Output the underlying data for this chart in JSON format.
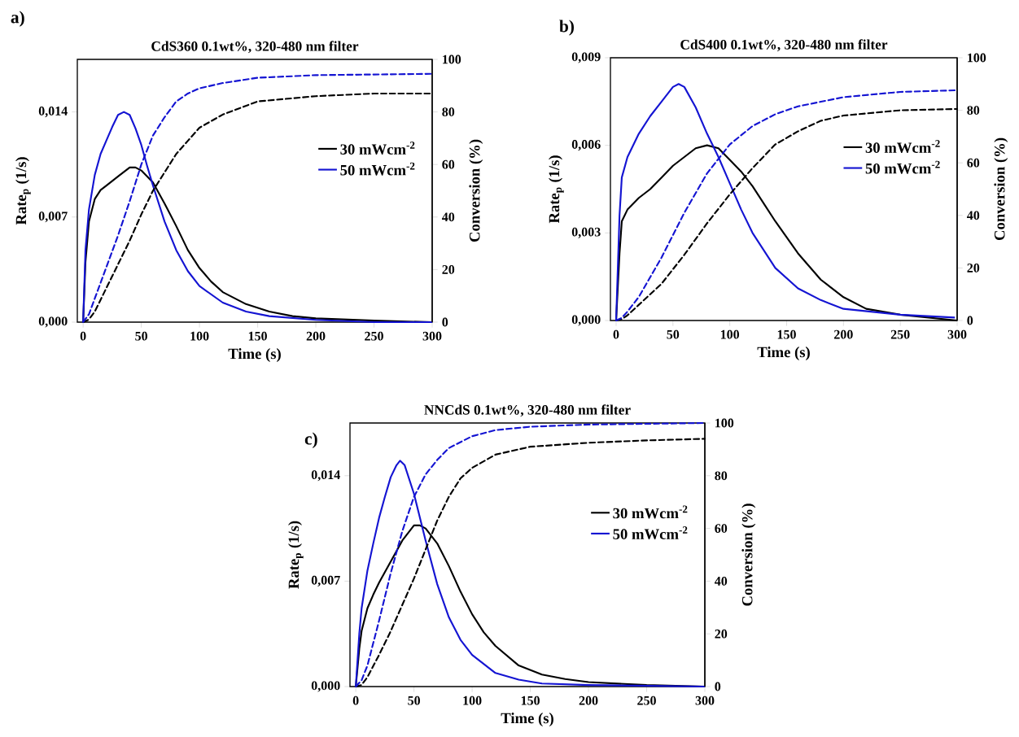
{
  "chart_data": [
    {
      "type": "line",
      "title": "CdS360 0.1wt%, 320-480 nm filter",
      "xlabel": "Time (s)",
      "ylabel": "Rate$_{p}$ (1/s)",
      "y2label": "Conversion (%)",
      "annotations": [
        "a)"
      ],
      "legend": "right",
      "xlim": [
        -5,
        300
      ],
      "xticks": [
        0,
        50,
        100,
        150,
        200,
        250,
        300
      ],
      "ylim": [
        0,
        0.0175
      ],
      "yticks": [
        {
          "value": 0,
          "label": "0,000"
        },
        {
          "value": 0.007,
          "label": "0,007"
        },
        {
          "value": 0.014,
          "label": "0,014"
        }
      ],
      "y2lim": [
        0,
        100
      ],
      "y2ticks": [
        0,
        20,
        40,
        60,
        80,
        100
      ],
      "series": [
        {
          "name": "30 mWcm$^{-2}$",
          "color": "#000000",
          "x": [
            0,
            2,
            5,
            10,
            15,
            20,
            30,
            40,
            45,
            50,
            60,
            70,
            80,
            90,
            100,
            110,
            120,
            140,
            160,
            180,
            200,
            250,
            300
          ],
          "values": [
            0,
            0.004,
            0.0067,
            0.0082,
            0.0088,
            0.0091,
            0.0097,
            0.0103,
            0.0103,
            0.0101,
            0.0093,
            0.0079,
            0.0064,
            0.0048,
            0.0036,
            0.0027,
            0.002,
            0.0012,
            0.0007,
            0.0004,
            0.00025,
            0.0001,
            0
          ]
        },
        {
          "name": "50 mWcm$^{-2}$",
          "color": "#1414d2",
          "x": [
            0,
            2,
            5,
            10,
            15,
            20,
            25,
            30,
            35,
            40,
            45,
            50,
            55,
            60,
            70,
            80,
            90,
            100,
            120,
            140,
            160,
            200,
            250,
            300
          ],
          "values": [
            0,
            0.0048,
            0.0075,
            0.0098,
            0.0112,
            0.0121,
            0.013,
            0.0138,
            0.014,
            0.0138,
            0.0129,
            0.0118,
            0.0104,
            0.0091,
            0.0067,
            0.0048,
            0.0034,
            0.0024,
            0.0013,
            0.0007,
            0.0004,
            0.00015,
            0,
            0
          ]
        },
        {
          "color": "#000000",
          "axis": "y2",
          "line_style": "dashed",
          "x": [
            0,
            5,
            10,
            20,
            30,
            40,
            50,
            60,
            70,
            80,
            90,
            100,
            120,
            150,
            200,
            250,
            300
          ],
          "values": [
            0,
            1,
            4,
            13,
            22,
            31,
            41,
            50,
            57,
            64,
            69,
            74,
            79,
            84,
            86,
            87,
            87
          ]
        },
        {
          "color": "#1414d2",
          "axis": "y2",
          "line_style": "dashed",
          "x": [
            0,
            5,
            10,
            20,
            30,
            40,
            50,
            60,
            70,
            80,
            90,
            100,
            120,
            150,
            200,
            300
          ],
          "values": [
            0,
            3,
            9,
            21,
            33,
            46,
            60,
            71,
            78,
            84,
            87,
            89,
            91,
            93,
            94,
            94.5
          ]
        }
      ]
    },
    {
      "type": "line",
      "title": "CdS400 0.1wt%, 320-480 nm filter",
      "xlabel": "Time (s)",
      "ylabel": "Rate$_{p}$ (1/s)",
      "y2label": "Conversion (%)",
      "annotations": [
        "b)"
      ],
      "legend": "right",
      "xlim": [
        -5,
        300
      ],
      "xticks": [
        0,
        50,
        100,
        150,
        200,
        250,
        300
      ],
      "ylim": [
        0,
        0.009
      ],
      "yticks": [
        {
          "value": 0,
          "label": "0,000"
        },
        {
          "value": 0.003,
          "label": "0,003"
        },
        {
          "value": 0.006,
          "label": "0,006"
        },
        {
          "value": 0.009,
          "label": "0,009"
        }
      ],
      "y2lim": [
        0,
        100
      ],
      "y2ticks": [
        0,
        20,
        40,
        60,
        80,
        100
      ],
      "series": [
        {
          "name": "30 mWcm$^{-2}$",
          "color": "#000000",
          "x": [
            0,
            3,
            5,
            10,
            15,
            20,
            30,
            40,
            50,
            60,
            70,
            80,
            90,
            100,
            110,
            120,
            140,
            160,
            180,
            200,
            220,
            250,
            300
          ],
          "values": [
            0,
            0.0023,
            0.0034,
            0.0038,
            0.004,
            0.0042,
            0.0045,
            0.0049,
            0.0053,
            0.0056,
            0.0059,
            0.006,
            0.0059,
            0.0055,
            0.0051,
            0.0046,
            0.0034,
            0.0023,
            0.0014,
            0.0008,
            0.0004,
            0.0002,
            0
          ]
        },
        {
          "name": "50 mWcm$^{-2}$",
          "color": "#1414d2",
          "x": [
            0,
            3,
            5,
            10,
            15,
            20,
            30,
            40,
            50,
            55,
            60,
            70,
            80,
            90,
            100,
            110,
            120,
            140,
            160,
            180,
            200,
            250,
            298
          ],
          "values": [
            0,
            0.0036,
            0.0049,
            0.0056,
            0.006,
            0.0064,
            0.007,
            0.0075,
            0.008,
            0.0081,
            0.008,
            0.0073,
            0.0064,
            0.0056,
            0.0047,
            0.0038,
            0.003,
            0.0018,
            0.0011,
            0.0007,
            0.0004,
            0.0002,
            0.0001
          ]
        },
        {
          "color": "#000000",
          "axis": "y2",
          "line_style": "dashed",
          "x": [
            0,
            5,
            10,
            20,
            40,
            60,
            80,
            100,
            120,
            140,
            160,
            180,
            200,
            250,
            300
          ],
          "values": [
            0,
            0.5,
            2,
            6,
            14,
            25,
            37,
            48,
            58,
            67,
            72,
            76,
            78,
            80,
            80.5
          ]
        },
        {
          "color": "#1414d2",
          "axis": "y2",
          "line_style": "dashed",
          "x": [
            0,
            5,
            10,
            20,
            40,
            60,
            80,
            100,
            120,
            140,
            160,
            200,
            250,
            298
          ],
          "values": [
            0,
            1,
            3.4,
            9,
            24,
            41,
            56,
            67,
            74,
            78.5,
            81.5,
            85,
            87,
            87.6
          ]
        }
      ]
    },
    {
      "type": "line",
      "title": "NNCdS 0.1wt%, 320-480 nm filter",
      "xlabel": "Time (s)",
      "ylabel": "Rate$_{p}$ (1/s)",
      "y2label": "Conversion (%)",
      "annotations": [
        "c)"
      ],
      "legend": "right",
      "xlim": [
        -5,
        300
      ],
      "xticks": [
        0,
        50,
        100,
        150,
        200,
        250,
        300
      ],
      "ylim": [
        0,
        0.0175
      ],
      "yticks": [
        {
          "value": 0,
          "label": "0,000"
        },
        {
          "value": 0.007,
          "label": "0,007"
        },
        {
          "value": 0.014,
          "label": "0,014"
        }
      ],
      "y2lim": [
        0,
        100
      ],
      "y2ticks": [
        0,
        20,
        40,
        60,
        80,
        100
      ],
      "series": [
        {
          "name": "30 mWcm$^{-2}$",
          "color": "#000000",
          "x": [
            0,
            3,
            5,
            10,
            15,
            20,
            30,
            40,
            50,
            55,
            60,
            70,
            80,
            90,
            100,
            110,
            120,
            140,
            160,
            180,
            200,
            250,
            300
          ],
          "values": [
            0,
            0.0025,
            0.0037,
            0.0052,
            0.0061,
            0.0069,
            0.0083,
            0.0097,
            0.0107,
            0.0107,
            0.0105,
            0.0095,
            0.008,
            0.0063,
            0.0048,
            0.0036,
            0.0027,
            0.0014,
            0.0008,
            0.0005,
            0.0003,
            0.0001,
            0
          ]
        },
        {
          "name": "50 mWcm$^{-2}$",
          "color": "#1414d2",
          "x": [
            0,
            3,
            5,
            10,
            15,
            20,
            25,
            30,
            35,
            38,
            42,
            50,
            60,
            70,
            80,
            90,
            100,
            120,
            140,
            160,
            200,
            300
          ],
          "values": [
            0,
            0.0035,
            0.0052,
            0.0077,
            0.0095,
            0.0112,
            0.0126,
            0.0139,
            0.0147,
            0.015,
            0.0147,
            0.0128,
            0.0097,
            0.0068,
            0.0046,
            0.0031,
            0.0021,
            0.0009,
            0.00046,
            0.0002,
            0.0001,
            0
          ]
        },
        {
          "color": "#000000",
          "axis": "y2",
          "line_style": "dashed",
          "x": [
            0,
            5,
            10,
            20,
            30,
            40,
            50,
            60,
            70,
            80,
            90,
            100,
            120,
            150,
            200,
            250,
            300
          ],
          "values": [
            0,
            0.6,
            3.6,
            12,
            21,
            31,
            41,
            52,
            63,
            72,
            79,
            83,
            88,
            91,
            92.5,
            93.4,
            94
          ]
        },
        {
          "color": "#1414d2",
          "axis": "y2",
          "line_style": "dashed",
          "x": [
            0,
            5,
            10,
            20,
            30,
            40,
            50,
            60,
            70,
            80,
            100,
            120,
            150,
            200,
            300
          ],
          "values": [
            0,
            2.4,
            8,
            25,
            43,
            59,
            72,
            80.5,
            86,
            90.5,
            95,
            97.3,
            98.6,
            99.4,
            100
          ]
        }
      ]
    }
  ]
}
